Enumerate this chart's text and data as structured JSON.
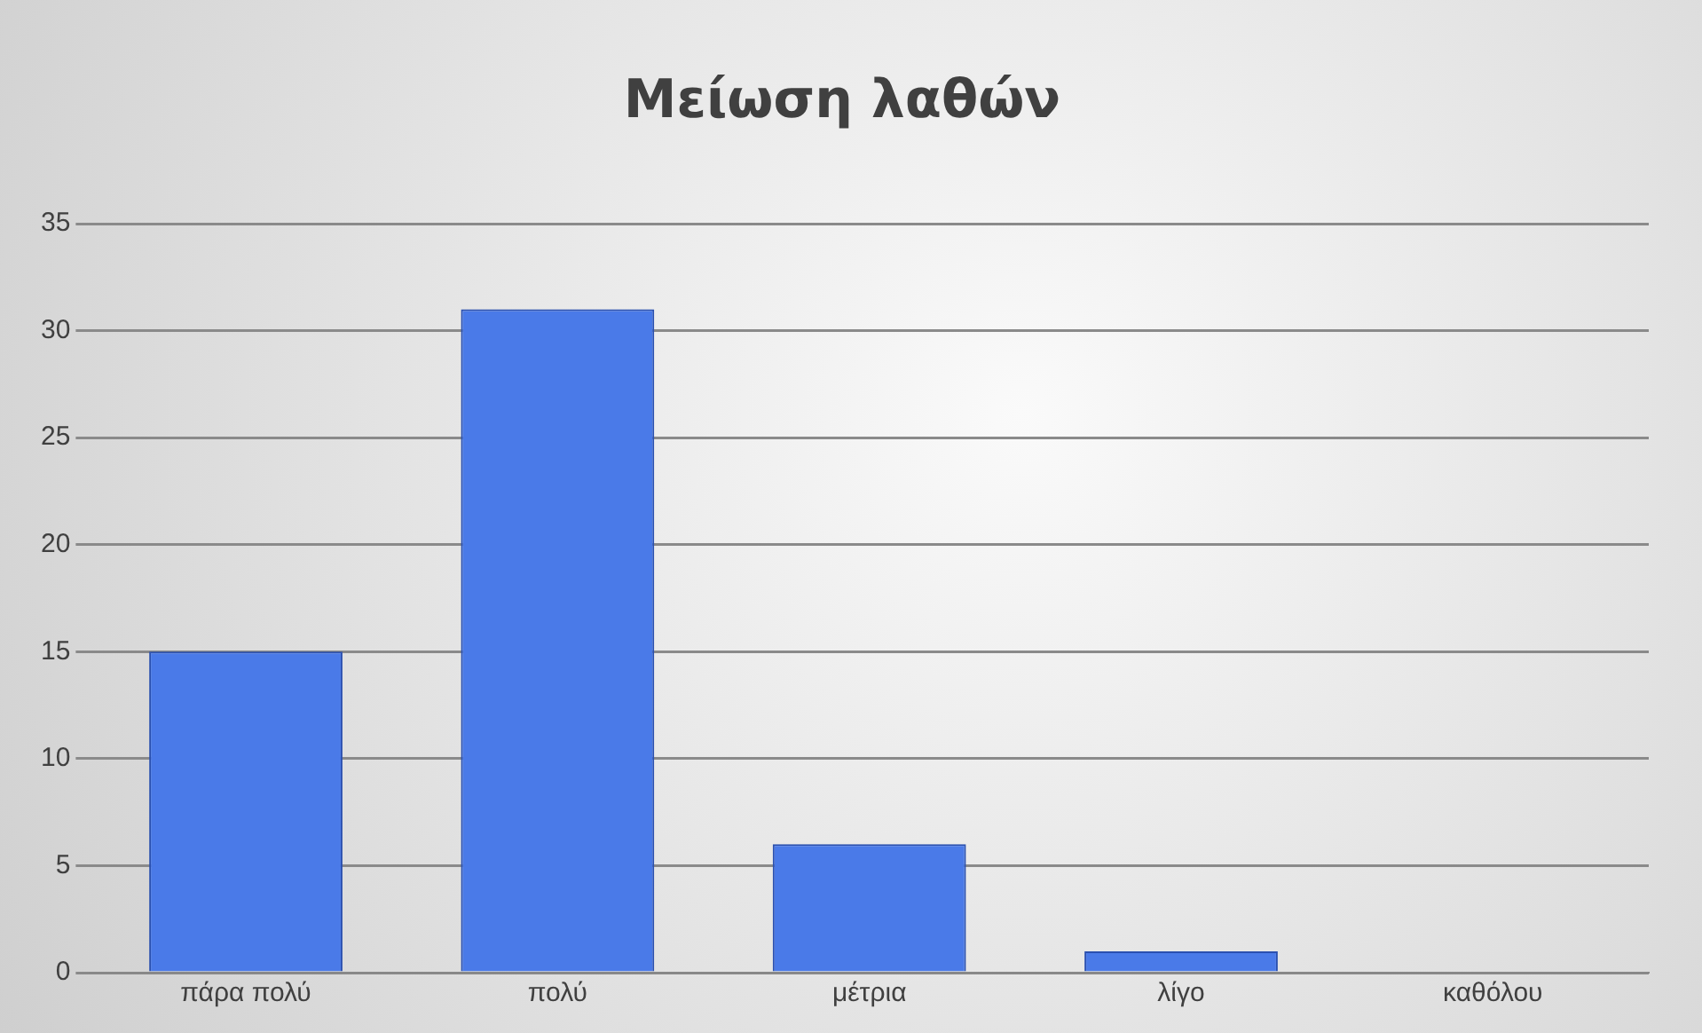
{
  "chart_data": {
    "type": "bar",
    "title": "Μείωση λαθών",
    "categories": [
      "πάρα πολύ",
      "πολύ",
      "μέτρια",
      "λίγο",
      "καθόλου"
    ],
    "values": [
      15,
      31,
      6,
      1,
      0
    ],
    "color": "#4a7ae8",
    "ylim": [
      0,
      35
    ],
    "yticks": [
      0,
      5,
      10,
      15,
      20,
      25,
      30,
      35
    ],
    "grid": "y",
    "legend": false
  }
}
